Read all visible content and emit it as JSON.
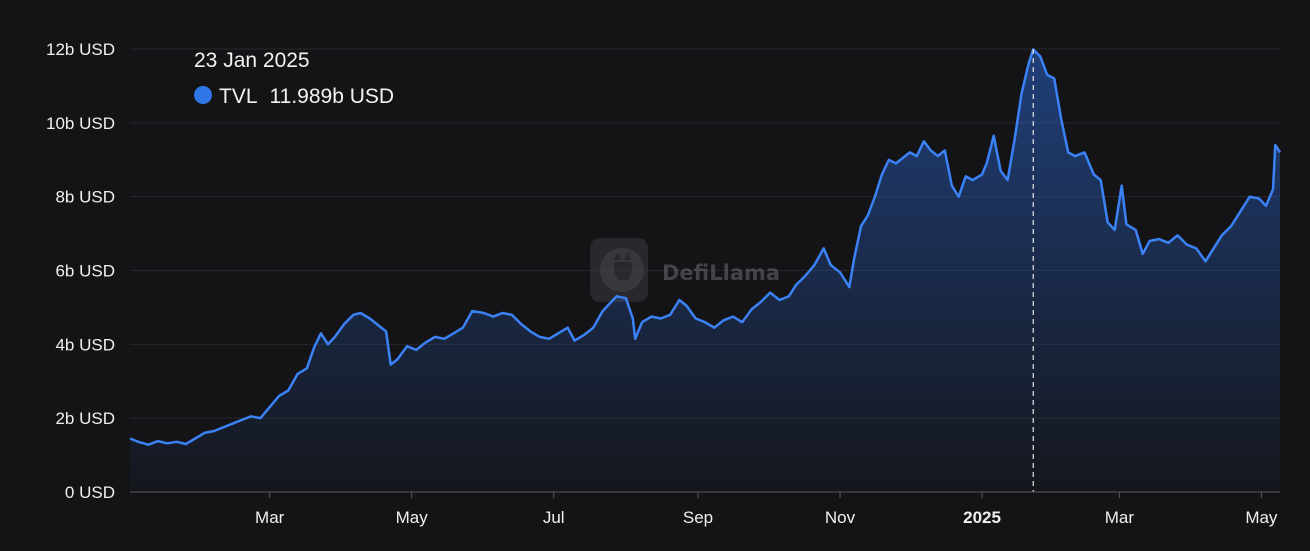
{
  "colors": {
    "background": "#141417",
    "line": "#3b82f6",
    "area_top": "#2a63c9",
    "axis_text": "#f0f0f0",
    "grid": "#26272c",
    "marker": "#2f76e6"
  },
  "tooltip": {
    "date": "23 Jan 2025",
    "series": "TVL",
    "value": "11.989b USD",
    "marker_icon": "circle-dot-icon"
  },
  "watermark": {
    "text": "DefiLlama",
    "icon": "llama-logo-icon"
  },
  "chart_data": {
    "type": "area",
    "title": "",
    "xlabel": "",
    "ylabel": "",
    "ylim": [
      0,
      12
    ],
    "y_unit": "b USD",
    "y_ticks": [
      {
        "value": 0,
        "label": "0 USD"
      },
      {
        "value": 2,
        "label": "2b USD"
      },
      {
        "value": 4,
        "label": "4b USD"
      },
      {
        "value": 6,
        "label": "6b USD"
      },
      {
        "value": 8,
        "label": "8b USD"
      },
      {
        "value": 10,
        "label": "10b USD"
      },
      {
        "value": 12,
        "label": "12b USD"
      }
    ],
    "x_range": [
      "2024-01-01",
      "2025-05-09"
    ],
    "x_ticks": [
      {
        "date": "2024-03-01",
        "label": "Mar",
        "bold": false
      },
      {
        "date": "2024-05-01",
        "label": "May",
        "bold": false
      },
      {
        "date": "2024-07-01",
        "label": "Jul",
        "bold": false
      },
      {
        "date": "2024-09-01",
        "label": "Sep",
        "bold": false
      },
      {
        "date": "2024-11-01",
        "label": "Nov",
        "bold": false
      },
      {
        "date": "2025-01-01",
        "label": "2025",
        "bold": true
      },
      {
        "date": "2025-03-01",
        "label": "Mar",
        "bold": false
      },
      {
        "date": "2025-05-01",
        "label": "May",
        "bold": false
      }
    ],
    "grid": true,
    "legend": "top-left",
    "crosshair_date": "2025-01-23",
    "series": [
      {
        "name": "TVL",
        "points": [
          [
            "2024-01-01",
            1.45
          ],
          [
            "2024-01-05",
            1.35
          ],
          [
            "2024-01-09",
            1.28
          ],
          [
            "2024-01-13",
            1.38
          ],
          [
            "2024-01-17",
            1.32
          ],
          [
            "2024-01-21",
            1.36
          ],
          [
            "2024-01-25",
            1.3
          ],
          [
            "2024-01-29",
            1.45
          ],
          [
            "2024-02-02",
            1.6
          ],
          [
            "2024-02-06",
            1.65
          ],
          [
            "2024-02-10",
            1.75
          ],
          [
            "2024-02-14",
            1.85
          ],
          [
            "2024-02-18",
            1.95
          ],
          [
            "2024-02-22",
            2.05
          ],
          [
            "2024-02-26",
            2.0
          ],
          [
            "2024-03-01",
            2.3
          ],
          [
            "2024-03-05",
            2.6
          ],
          [
            "2024-03-09",
            2.75
          ],
          [
            "2024-03-13",
            3.2
          ],
          [
            "2024-03-17",
            3.35
          ],
          [
            "2024-03-20",
            3.9
          ],
          [
            "2024-03-23",
            4.3
          ],
          [
            "2024-03-26",
            4.0
          ],
          [
            "2024-03-29",
            4.2
          ],
          [
            "2024-04-02",
            4.55
          ],
          [
            "2024-04-06",
            4.8
          ],
          [
            "2024-04-09",
            4.85
          ],
          [
            "2024-04-13",
            4.7
          ],
          [
            "2024-04-17",
            4.5
          ],
          [
            "2024-04-20",
            4.35
          ],
          [
            "2024-04-22",
            3.45
          ],
          [
            "2024-04-25",
            3.6
          ],
          [
            "2024-04-29",
            3.95
          ],
          [
            "2024-05-03",
            3.85
          ],
          [
            "2024-05-07",
            4.05
          ],
          [
            "2024-05-11",
            4.2
          ],
          [
            "2024-05-15",
            4.15
          ],
          [
            "2024-05-19",
            4.3
          ],
          [
            "2024-05-23",
            4.45
          ],
          [
            "2024-05-27",
            4.9
          ],
          [
            "2024-06-01",
            4.85
          ],
          [
            "2024-06-05",
            4.75
          ],
          [
            "2024-06-09",
            4.85
          ],
          [
            "2024-06-13",
            4.8
          ],
          [
            "2024-06-17",
            4.55
          ],
          [
            "2024-06-21",
            4.35
          ],
          [
            "2024-06-25",
            4.2
          ],
          [
            "2024-06-29",
            4.15
          ],
          [
            "2024-07-03",
            4.3
          ],
          [
            "2024-07-07",
            4.45
          ],
          [
            "2024-07-10",
            4.1
          ],
          [
            "2024-07-14",
            4.25
          ],
          [
            "2024-07-18",
            4.45
          ],
          [
            "2024-07-22",
            4.9
          ],
          [
            "2024-07-25",
            5.1
          ],
          [
            "2024-07-28",
            5.3
          ],
          [
            "2024-08-01",
            5.25
          ],
          [
            "2024-08-04",
            4.7
          ],
          [
            "2024-08-05",
            4.15
          ],
          [
            "2024-08-08",
            4.6
          ],
          [
            "2024-08-12",
            4.75
          ],
          [
            "2024-08-16",
            4.7
          ],
          [
            "2024-08-20",
            4.8
          ],
          [
            "2024-08-24",
            5.2
          ],
          [
            "2024-08-27",
            5.05
          ],
          [
            "2024-08-31",
            4.7
          ],
          [
            "2024-09-04",
            4.6
          ],
          [
            "2024-09-08",
            4.45
          ],
          [
            "2024-09-12",
            4.65
          ],
          [
            "2024-09-16",
            4.75
          ],
          [
            "2024-09-20",
            4.6
          ],
          [
            "2024-09-24",
            4.95
          ],
          [
            "2024-09-28",
            5.15
          ],
          [
            "2024-10-02",
            5.4
          ],
          [
            "2024-10-06",
            5.2
          ],
          [
            "2024-10-10",
            5.3
          ],
          [
            "2024-10-13",
            5.6
          ],
          [
            "2024-10-17",
            5.85
          ],
          [
            "2024-10-21",
            6.15
          ],
          [
            "2024-10-25",
            6.6
          ],
          [
            "2024-10-28",
            6.15
          ],
          [
            "2024-11-01",
            5.95
          ],
          [
            "2024-11-05",
            5.55
          ],
          [
            "2024-11-07",
            6.3
          ],
          [
            "2024-11-10",
            7.2
          ],
          [
            "2024-11-13",
            7.5
          ],
          [
            "2024-11-16",
            8.0
          ],
          [
            "2024-11-19",
            8.6
          ],
          [
            "2024-11-22",
            9.0
          ],
          [
            "2024-11-25",
            8.9
          ],
          [
            "2024-11-28",
            9.05
          ],
          [
            "2024-12-01",
            9.2
          ],
          [
            "2024-12-04",
            9.1
          ],
          [
            "2024-12-07",
            9.5
          ],
          [
            "2024-12-10",
            9.25
          ],
          [
            "2024-12-13",
            9.1
          ],
          [
            "2024-12-16",
            9.25
          ],
          [
            "2024-12-19",
            8.3
          ],
          [
            "2024-12-22",
            8.0
          ],
          [
            "2024-12-25",
            8.55
          ],
          [
            "2024-12-28",
            8.45
          ],
          [
            "2025-01-01",
            8.6
          ],
          [
            "2025-01-03",
            8.9
          ],
          [
            "2025-01-06",
            9.65
          ],
          [
            "2025-01-09",
            8.7
          ],
          [
            "2025-01-12",
            8.45
          ],
          [
            "2025-01-15",
            9.55
          ],
          [
            "2025-01-18",
            10.8
          ],
          [
            "2025-01-21",
            11.6
          ],
          [
            "2025-01-23",
            11.989
          ],
          [
            "2025-01-26",
            11.8
          ],
          [
            "2025-01-29",
            11.3
          ],
          [
            "2025-02-01",
            11.2
          ],
          [
            "2025-02-04",
            10.1
          ],
          [
            "2025-02-07",
            9.2
          ],
          [
            "2025-02-10",
            9.1
          ],
          [
            "2025-02-14",
            9.2
          ],
          [
            "2025-02-18",
            8.6
          ],
          [
            "2025-02-21",
            8.45
          ],
          [
            "2025-02-24",
            7.3
          ],
          [
            "2025-02-27",
            7.1
          ],
          [
            "2025-03-02",
            8.3
          ],
          [
            "2025-03-04",
            7.25
          ],
          [
            "2025-03-08",
            7.1
          ],
          [
            "2025-03-11",
            6.45
          ],
          [
            "2025-03-14",
            6.8
          ],
          [
            "2025-03-18",
            6.85
          ],
          [
            "2025-03-22",
            6.75
          ],
          [
            "2025-03-26",
            6.95
          ],
          [
            "2025-03-30",
            6.7
          ],
          [
            "2025-04-03",
            6.6
          ],
          [
            "2025-04-07",
            6.25
          ],
          [
            "2025-04-10",
            6.55
          ],
          [
            "2025-04-14",
            6.95
          ],
          [
            "2025-04-18",
            7.2
          ],
          [
            "2025-04-22",
            7.6
          ],
          [
            "2025-04-26",
            8.0
          ],
          [
            "2025-04-30",
            7.95
          ],
          [
            "2025-05-03",
            7.75
          ],
          [
            "2025-05-06",
            8.2
          ],
          [
            "2025-05-07",
            9.4
          ],
          [
            "2025-05-09",
            9.2
          ]
        ]
      }
    ]
  }
}
